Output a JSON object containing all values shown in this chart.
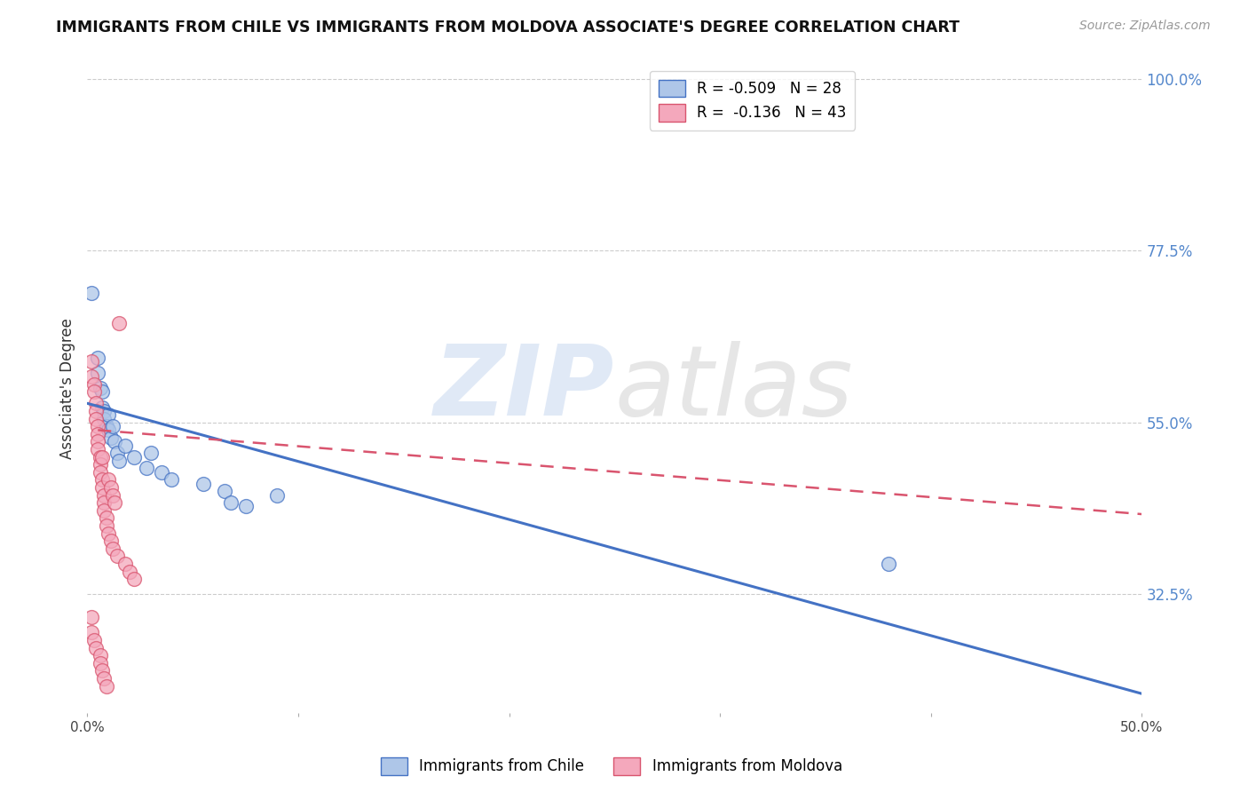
{
  "title": "IMMIGRANTS FROM CHILE VS IMMIGRANTS FROM MOLDOVA ASSOCIATE'S DEGREE CORRELATION CHART",
  "source": "Source: ZipAtlas.com",
  "ylabel": "Associate's Degree",
  "right_ytick_labels": [
    "100.0%",
    "77.5%",
    "55.0%",
    "32.5%"
  ],
  "right_ytick_vals": [
    1.0,
    0.775,
    0.55,
    0.325
  ],
  "watermark_zip": "ZIP",
  "watermark_atlas": "atlas",
  "legend_chile_R": "-0.509",
  "legend_chile_N": "28",
  "legend_moldova_R": "-0.136",
  "legend_moldova_N": "43",
  "chile_color": "#aec6e8",
  "moldova_color": "#f4a8bc",
  "trendline_chile_color": "#4472c4",
  "trendline_moldova_color": "#d9546e",
  "chile_scatter": [
    [
      0.002,
      0.72
    ],
    [
      0.005,
      0.635
    ],
    [
      0.005,
      0.615
    ],
    [
      0.006,
      0.595
    ],
    [
      0.007,
      0.59
    ],
    [
      0.007,
      0.57
    ],
    [
      0.008,
      0.565
    ],
    [
      0.008,
      0.555
    ],
    [
      0.009,
      0.545
    ],
    [
      0.01,
      0.56
    ],
    [
      0.01,
      0.54
    ],
    [
      0.011,
      0.53
    ],
    [
      0.012,
      0.545
    ],
    [
      0.013,
      0.525
    ],
    [
      0.014,
      0.51
    ],
    [
      0.015,
      0.5
    ],
    [
      0.018,
      0.52
    ],
    [
      0.022,
      0.505
    ],
    [
      0.028,
      0.49
    ],
    [
      0.03,
      0.51
    ],
    [
      0.035,
      0.485
    ],
    [
      0.04,
      0.475
    ],
    [
      0.055,
      0.47
    ],
    [
      0.065,
      0.46
    ],
    [
      0.068,
      0.445
    ],
    [
      0.075,
      0.44
    ],
    [
      0.09,
      0.455
    ],
    [
      0.38,
      0.365
    ]
  ],
  "moldova_scatter": [
    [
      0.002,
      0.63
    ],
    [
      0.002,
      0.61
    ],
    [
      0.003,
      0.6
    ],
    [
      0.003,
      0.59
    ],
    [
      0.004,
      0.575
    ],
    [
      0.004,
      0.565
    ],
    [
      0.004,
      0.555
    ],
    [
      0.005,
      0.545
    ],
    [
      0.005,
      0.535
    ],
    [
      0.005,
      0.525
    ],
    [
      0.005,
      0.515
    ],
    [
      0.006,
      0.505
    ],
    [
      0.006,
      0.495
    ],
    [
      0.006,
      0.485
    ],
    [
      0.007,
      0.505
    ],
    [
      0.007,
      0.475
    ],
    [
      0.007,
      0.465
    ],
    [
      0.008,
      0.455
    ],
    [
      0.008,
      0.445
    ],
    [
      0.008,
      0.435
    ],
    [
      0.009,
      0.425
    ],
    [
      0.009,
      0.415
    ],
    [
      0.01,
      0.475
    ],
    [
      0.01,
      0.405
    ],
    [
      0.011,
      0.465
    ],
    [
      0.011,
      0.395
    ],
    [
      0.012,
      0.455
    ],
    [
      0.012,
      0.385
    ],
    [
      0.013,
      0.445
    ],
    [
      0.014,
      0.375
    ],
    [
      0.015,
      0.68
    ],
    [
      0.018,
      0.365
    ],
    [
      0.02,
      0.355
    ],
    [
      0.022,
      0.345
    ],
    [
      0.002,
      0.295
    ],
    [
      0.002,
      0.275
    ],
    [
      0.003,
      0.265
    ],
    [
      0.004,
      0.255
    ],
    [
      0.006,
      0.245
    ],
    [
      0.006,
      0.235
    ],
    [
      0.007,
      0.225
    ],
    [
      0.008,
      0.215
    ],
    [
      0.009,
      0.205
    ]
  ],
  "xmin": 0.0,
  "xmax": 0.5,
  "ymin": 0.17,
  "ymax": 1.02,
  "xticks": [
    0.0,
    0.1,
    0.2,
    0.3,
    0.4,
    0.5
  ],
  "xtick_labels": [
    "0.0%",
    "",
    "",
    "",
    "",
    "50.0%"
  ],
  "chile_trend_x": [
    0.0,
    0.5
  ],
  "chile_trend_y": [
    0.575,
    0.195
  ],
  "moldova_trend_x": [
    0.005,
    0.5
  ],
  "moldova_trend_y": [
    0.54,
    0.43
  ]
}
